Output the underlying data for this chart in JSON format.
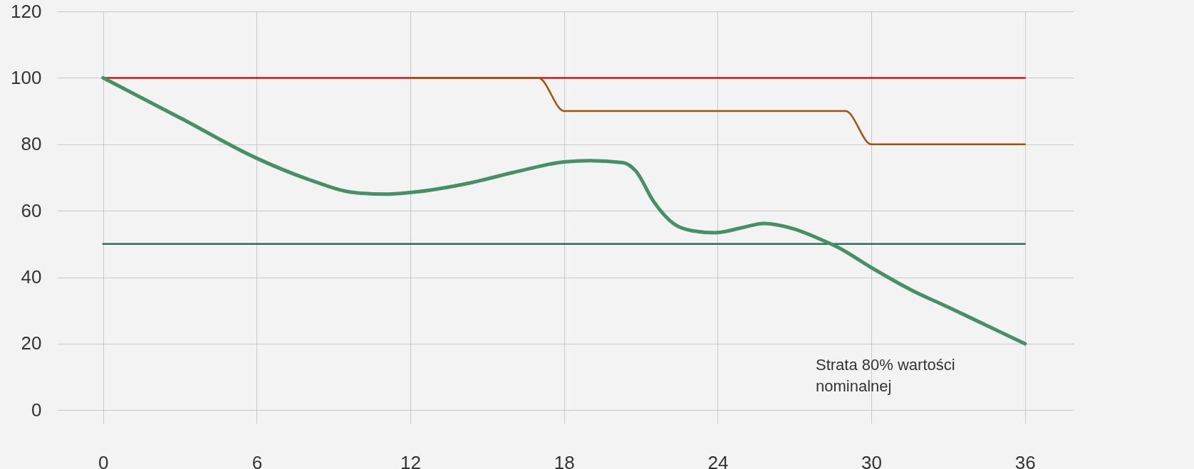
{
  "chart_data": {
    "type": "line",
    "xlim": [
      -1.8,
      37.9
    ],
    "xticks": [
      0,
      6,
      12,
      18,
      24,
      30,
      36
    ],
    "ylim": [
      -4,
      120
    ],
    "yticks": [
      0,
      20,
      40,
      60,
      80,
      100,
      120
    ],
    "grid": true,
    "legend": false,
    "line_style": "solid",
    "marker": "none",
    "series": [
      {
        "color": "#c8161d",
        "x": [
          0,
          36
        ],
        "values": [
          100,
          100
        ]
      },
      {
        "color": "#2e6b5e",
        "x": [
          0,
          36
        ],
        "values": [
          50,
          50
        ]
      },
      {
        "color": "#a0520a",
        "x": [
          12,
          17,
          18,
          29,
          30,
          36
        ],
        "values": [
          100,
          100,
          90,
          90,
          80,
          80
        ]
      },
      {
        "color": "#459065",
        "x": [
          0,
          3,
          6,
          8,
          9.8,
          11,
          12,
          14.4,
          16,
          18,
          19,
          20.3,
          20.8,
          21.5,
          22.3,
          23,
          23.9,
          25,
          25.8,
          27,
          27.9,
          28.7,
          30,
          31.6,
          33,
          34.5,
          36
        ],
        "values": [
          100,
          88,
          75.8,
          69.5,
          65.5,
          65,
          65.5,
          68.5,
          71.5,
          74.7,
          75.1,
          74.5,
          72,
          62.8,
          56,
          54,
          53.4,
          55,
          56.2,
          54.5,
          51.8,
          49,
          42.9,
          36,
          31,
          25.5,
          20
        ]
      }
    ],
    "annotations": [
      "Strata 80% wartości nominalnej"
    ]
  }
}
